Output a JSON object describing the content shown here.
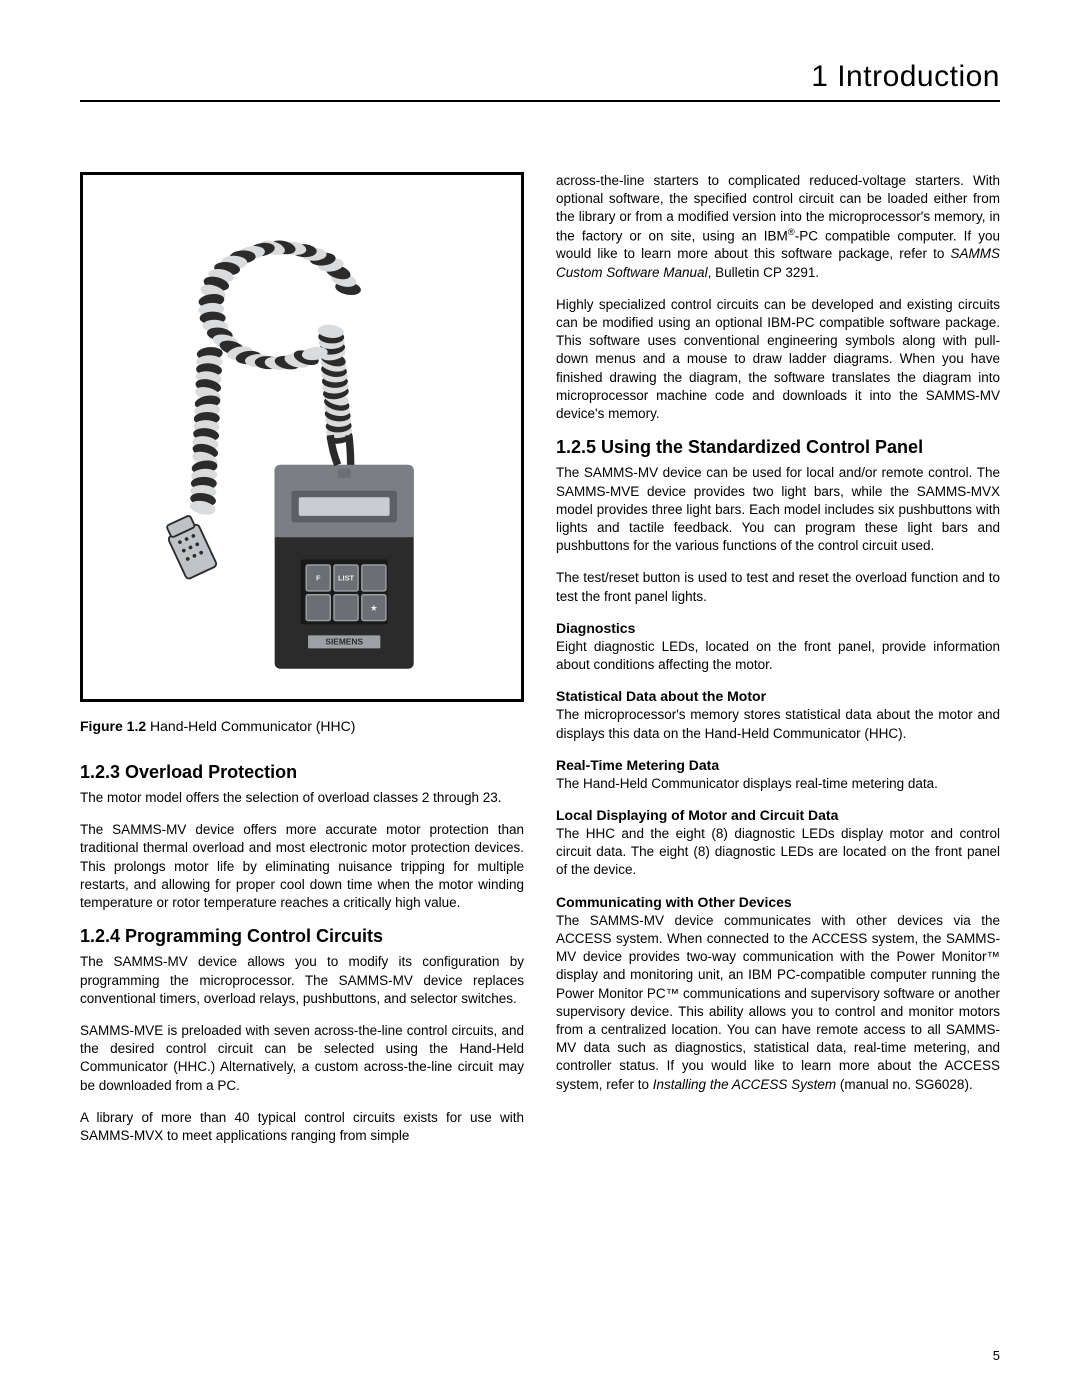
{
  "header": {
    "title": "1 Introduction"
  },
  "figure": {
    "caption_bold": "Figure 1.2",
    "caption_rest": " Hand-Held Communicator (HHC)",
    "device_colors": {
      "body": "#2b2b2b",
      "top": "#7b7f84",
      "screen_outer": "#5c5f63",
      "screen_inner": "#c9cdd1",
      "button_fill": "#6b6f73",
      "button_stroke": "#9da1a5",
      "brand_fill": "#9da1a5",
      "cable_light": "#d9dbdd",
      "cable_dark": "#2b2b2b",
      "connector_fill": "#bfc3c7",
      "connector_stroke": "#2b2b2b"
    },
    "buttons": [
      "F",
      "LIST",
      "",
      "",
      "",
      "★"
    ],
    "brand": "SIEMENS"
  },
  "left": {
    "s1_title": "1.2.3 Overload Protection",
    "s1_p1": "The motor model offers the selection of overload classes 2 through 23.",
    "s1_p2": "The SAMMS-MV device offers more accurate motor protection than traditional thermal overload and most electronic motor protection devices. This prolongs motor life by eliminating nuisance tripping for multiple restarts, and allowing for proper cool down time when the motor winding temperature or rotor temperature reaches a critically high value.",
    "s2_title": "1.2.4 Programming Control Circuits",
    "s2_p1": "The SAMMS-MV device allows you to modify its configuration by programming the microprocessor. The SAMMS-MV device replaces conventional timers, overload relays, pushbuttons, and selector switches.",
    "s2_p2": "SAMMS-MVE is preloaded with seven across-the-line control circuits, and the desired control circuit can be selected using the Hand-Held Communicator (HHC.) Alternatively, a custom across-the-line circuit may be downloaded from a PC.",
    "s2_p3": "A library of more than 40 typical control circuits exists for use with SAMMS-MVX to meet applications ranging from simple"
  },
  "right": {
    "p1a": "across-the-line starters to complicated reduced-voltage starters. With optional software, the specified control circuit can be loaded either from the library or from a modified version into the microprocessor's memory, in the factory or on site, using an IBM",
    "p1_sup": "®",
    "p1b": "-PC compatible computer. If you would like to learn more about this software package, refer to ",
    "p1_italic": "SAMMS Custom Software Manual",
    "p1c": ", Bulletin CP 3291.",
    "p2": "Highly specialized control circuits can be developed and existing circuits can be modified using an optional IBM-PC compatible software package. This software uses conventional engineering symbols along with pull-down menus and a mouse to draw ladder diagrams. When you have finished drawing the diagram, the software translates the diagram into microprocessor machine code and downloads it into the SAMMS-MV device's memory.",
    "s3_title": "1.2.5 Using the Standardized Control Panel",
    "s3_p1": "The SAMMS-MV device can be used for local and/or remote control. The SAMMS-MVE device provides two light bars, while the SAMMS-MVX model provides three light bars. Each model includes six pushbuttons with lights and tactile feedback. You can program these light bars and pushbuttons for the various functions of the control circuit used.",
    "s3_p2": "The test/reset button is used to test and reset the overload function and to test the front panel lights.",
    "sub1_title": "Diagnostics",
    "sub1_p": "Eight diagnostic LEDs, located on the front panel, provide information about conditions affecting the motor.",
    "sub2_title": "Statistical Data about the Motor",
    "sub2_p": "The microprocessor's memory stores statistical data about the motor and displays this data on the Hand-Held Communicator (HHC).",
    "sub3_title": "Real-Time Metering Data",
    "sub3_p": "The Hand-Held Communicator displays real-time metering data.",
    "sub4_title": "Local Displaying of Motor and Circuit Data",
    "sub4_p": "The HHC and the eight (8) diagnostic LEDs display motor and control circuit data. The eight (8) diagnostic LEDs are located on the front panel of the device.",
    "sub5_title": "Communicating with Other Devices",
    "sub5_p_a": "The SAMMS-MV device communicates with other devices via the ACCESS system. When connected to the ACCESS system, the SAMMS-MV device provides two-way communication with the Power Monitor™ display and monitoring unit, an IBM PC-compatible computer running the Power Monitor PC™ communications and supervisory software or another supervisory device. This ability allows you to control and monitor motors from a centralized location. You can have remote access to all SAMMS-MV data such as diagnostics, statistical data, real-time metering, and controller status. If you would like to learn more about the ACCESS system, refer to ",
    "sub5_italic": "Installing the ACCESS System",
    "sub5_p_b": " (manual no. SG6028)."
  },
  "page_number": "5"
}
